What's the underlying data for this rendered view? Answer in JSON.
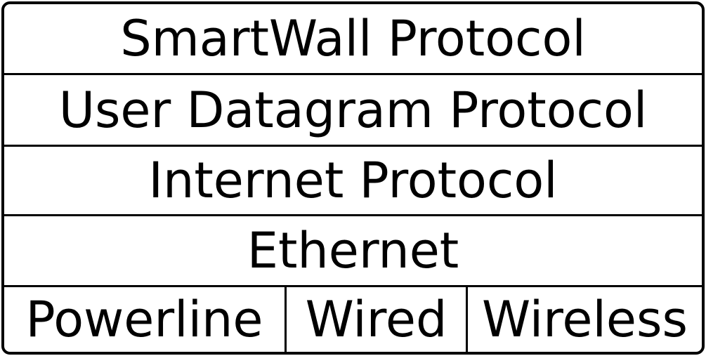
{
  "diagram": {
    "layers": [
      {
        "label": "SmartWall Protocol"
      },
      {
        "label": "User Datagram Protocol"
      },
      {
        "label": "Internet Protocol"
      },
      {
        "label": "Ethernet"
      }
    ],
    "physical": [
      {
        "label": "Powerline"
      },
      {
        "label": "Wired"
      },
      {
        "label": "Wireless"
      }
    ],
    "colors": {
      "stroke": "#000000",
      "background": "#ffffff",
      "text": "#000000"
    }
  }
}
